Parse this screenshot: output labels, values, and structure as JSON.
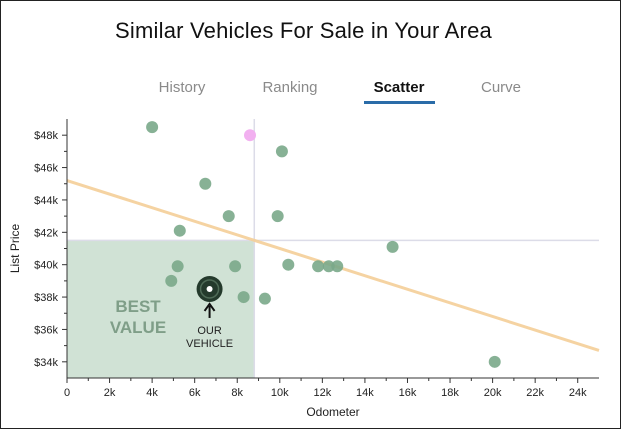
{
  "title": "Similar Vehicles For Sale in Your Area",
  "tabs": [
    {
      "label": "History",
      "active": false
    },
    {
      "label": "Ranking",
      "active": false
    },
    {
      "label": "Scatter",
      "active": true
    },
    {
      "label": "Curve",
      "active": false
    }
  ],
  "colors": {
    "accent": "#2a6ca8",
    "point": "#7aa88a",
    "highlight_point": "#f2b0f0",
    "trend": "#f5cf98",
    "best_value_fill": "#a9cbb2",
    "best_value_text": "#7f9e88",
    "crosshair": "#dcdce8"
  },
  "annotations": {
    "best_value": [
      "BEST",
      "VALUE"
    ],
    "our_vehicle": [
      "OUR",
      "VEHICLE"
    ]
  },
  "chart_data": {
    "type": "scatter",
    "xlabel": "Odometer",
    "ylabel": "List Price",
    "xlim": [
      0,
      25000
    ],
    "ylim": [
      33000,
      49000
    ],
    "x_ticks": [
      0,
      2000,
      4000,
      6000,
      8000,
      10000,
      12000,
      14000,
      16000,
      18000,
      20000,
      22000,
      24000
    ],
    "x_tick_labels": [
      "0",
      "2k",
      "4k",
      "6k",
      "8k",
      "10k",
      "12k",
      "14k",
      "16k",
      "18k",
      "20k",
      "22k",
      "24k"
    ],
    "y_ticks": [
      34000,
      36000,
      38000,
      40000,
      42000,
      44000,
      46000,
      48000
    ],
    "y_tick_labels": [
      "$34k",
      "$36k",
      "$38k",
      "$40k",
      "$42k",
      "$44k",
      "$46k",
      "$48k"
    ],
    "grid": false,
    "points": [
      {
        "x": 4000,
        "y": 48500
      },
      {
        "x": 10100,
        "y": 47000
      },
      {
        "x": 6500,
        "y": 45000
      },
      {
        "x": 7600,
        "y": 43000
      },
      {
        "x": 9900,
        "y": 43000
      },
      {
        "x": 5300,
        "y": 42100
      },
      {
        "x": 15300,
        "y": 41100
      },
      {
        "x": 5200,
        "y": 39900
      },
      {
        "x": 7900,
        "y": 39900
      },
      {
        "x": 10400,
        "y": 40000
      },
      {
        "x": 11800,
        "y": 39900
      },
      {
        "x": 12300,
        "y": 39900
      },
      {
        "x": 12700,
        "y": 39900
      },
      {
        "x": 4900,
        "y": 39000
      },
      {
        "x": 8300,
        "y": 38000
      },
      {
        "x": 9300,
        "y": 37900
      },
      {
        "x": 20100,
        "y": 34000
      }
    ],
    "highlight_point": {
      "x": 8600,
      "y": 48000
    },
    "our_vehicle": {
      "x": 6700,
      "y": 38500
    },
    "trend_line": [
      {
        "x": 0,
        "y": 45200
      },
      {
        "x": 25000,
        "y": 34700
      }
    ],
    "crosshair": {
      "x": 8800,
      "y": 41500
    },
    "best_value_region": {
      "x": [
        0,
        8800
      ],
      "y": [
        33000,
        41500
      ]
    }
  }
}
